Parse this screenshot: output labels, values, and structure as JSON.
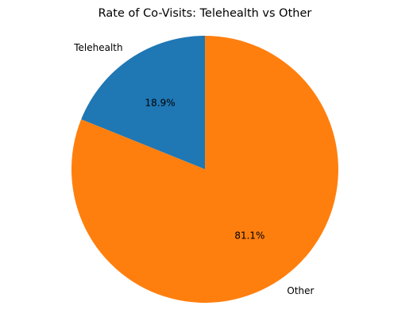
{
  "chart_data": {
    "type": "pie",
    "title": "Rate of Co-Visits: Telehealth vs Other",
    "slices": [
      {
        "label": "Telehealth",
        "value": 18.9,
        "pct_label": "18.9%",
        "color": "#1f77b4"
      },
      {
        "label": "Other",
        "value": 81.1,
        "pct_label": "81.1%",
        "color": "#ff7f0e"
      }
    ],
    "start_angle_deg": 90,
    "direction": "counterclockwise"
  }
}
